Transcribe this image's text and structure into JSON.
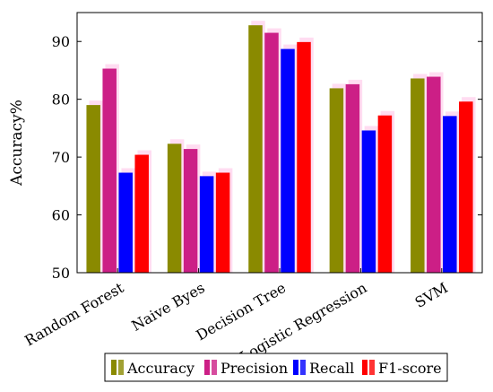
{
  "chart_data": {
    "type": "bar",
    "title": "",
    "xlabel": "",
    "ylabel": "Accuracy%",
    "ylim": [
      50,
      95
    ],
    "yticks": [
      50,
      60,
      70,
      80,
      90
    ],
    "grid": false,
    "legend_position": "bottom",
    "categories": [
      "Random Forest",
      "Naive Byes",
      "Decision Tree",
      "Logistic Regression",
      "SVM"
    ],
    "series": [
      {
        "name": "Accuracy",
        "color": "#8a8a00",
        "values": [
          79.0,
          72.3,
          92.8,
          81.9,
          83.6
        ]
      },
      {
        "name": "Precision",
        "color": "#cc1f86",
        "values": [
          85.3,
          71.4,
          91.5,
          82.6,
          83.9
        ]
      },
      {
        "name": "Recall",
        "color": "#0000ff",
        "values": [
          67.3,
          66.7,
          88.7,
          74.6,
          77.1
        ]
      },
      {
        "name": "F1-score",
        "color": "#ff0000",
        "values": [
          70.4,
          67.3,
          89.9,
          77.2,
          79.6
        ]
      }
    ]
  }
}
